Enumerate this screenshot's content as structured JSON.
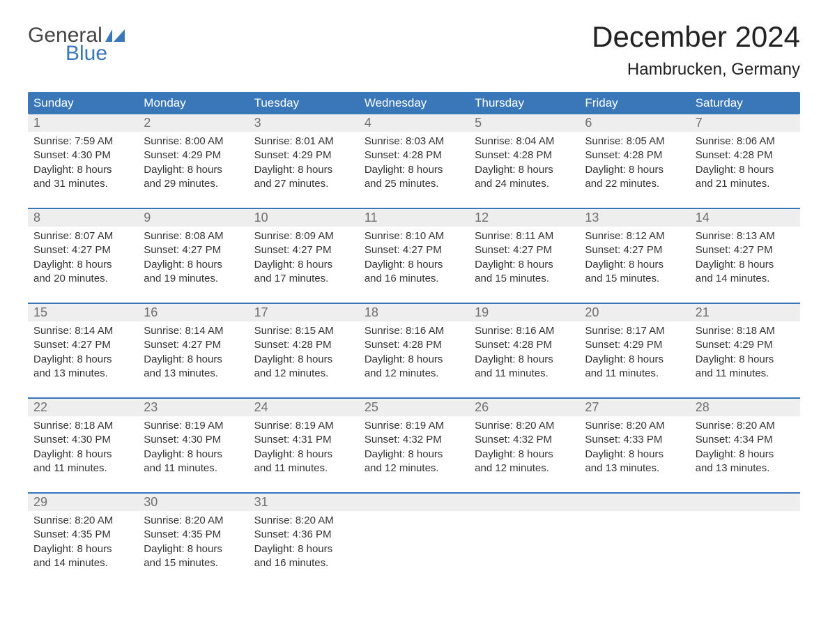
{
  "brand": {
    "word1": "General",
    "word2": "Blue"
  },
  "title": "December 2024",
  "location": "Hambrucken, Germany",
  "colors": {
    "header_bg": "#3a77b8",
    "header_text": "#ffffff",
    "daynum_bg": "#eeeeee",
    "daynum_text": "#707070",
    "body_text": "#333333",
    "week_border": "#3a77b8",
    "brand_gray": "#444444",
    "brand_blue": "#3a77b8",
    "page_bg": "#ffffff"
  },
  "typography": {
    "title_fontsize": 42,
    "location_fontsize": 24,
    "dow_fontsize": 17,
    "daynum_fontsize": 18,
    "body_fontsize": 15
  },
  "dow": [
    "Sunday",
    "Monday",
    "Tuesday",
    "Wednesday",
    "Thursday",
    "Friday",
    "Saturday"
  ],
  "days": [
    {
      "n": "1",
      "sunrise": "Sunrise: 7:59 AM",
      "sunset": "Sunset: 4:30 PM",
      "dl1": "Daylight: 8 hours",
      "dl2": "and 31 minutes."
    },
    {
      "n": "2",
      "sunrise": "Sunrise: 8:00 AM",
      "sunset": "Sunset: 4:29 PM",
      "dl1": "Daylight: 8 hours",
      "dl2": "and 29 minutes."
    },
    {
      "n": "3",
      "sunrise": "Sunrise: 8:01 AM",
      "sunset": "Sunset: 4:29 PM",
      "dl1": "Daylight: 8 hours",
      "dl2": "and 27 minutes."
    },
    {
      "n": "4",
      "sunrise": "Sunrise: 8:03 AM",
      "sunset": "Sunset: 4:28 PM",
      "dl1": "Daylight: 8 hours",
      "dl2": "and 25 minutes."
    },
    {
      "n": "5",
      "sunrise": "Sunrise: 8:04 AM",
      "sunset": "Sunset: 4:28 PM",
      "dl1": "Daylight: 8 hours",
      "dl2": "and 24 minutes."
    },
    {
      "n": "6",
      "sunrise": "Sunrise: 8:05 AM",
      "sunset": "Sunset: 4:28 PM",
      "dl1": "Daylight: 8 hours",
      "dl2": "and 22 minutes."
    },
    {
      "n": "7",
      "sunrise": "Sunrise: 8:06 AM",
      "sunset": "Sunset: 4:28 PM",
      "dl1": "Daylight: 8 hours",
      "dl2": "and 21 minutes."
    },
    {
      "n": "8",
      "sunrise": "Sunrise: 8:07 AM",
      "sunset": "Sunset: 4:27 PM",
      "dl1": "Daylight: 8 hours",
      "dl2": "and 20 minutes."
    },
    {
      "n": "9",
      "sunrise": "Sunrise: 8:08 AM",
      "sunset": "Sunset: 4:27 PM",
      "dl1": "Daylight: 8 hours",
      "dl2": "and 19 minutes."
    },
    {
      "n": "10",
      "sunrise": "Sunrise: 8:09 AM",
      "sunset": "Sunset: 4:27 PM",
      "dl1": "Daylight: 8 hours",
      "dl2": "and 17 minutes."
    },
    {
      "n": "11",
      "sunrise": "Sunrise: 8:10 AM",
      "sunset": "Sunset: 4:27 PM",
      "dl1": "Daylight: 8 hours",
      "dl2": "and 16 minutes."
    },
    {
      "n": "12",
      "sunrise": "Sunrise: 8:11 AM",
      "sunset": "Sunset: 4:27 PM",
      "dl1": "Daylight: 8 hours",
      "dl2": "and 15 minutes."
    },
    {
      "n": "13",
      "sunrise": "Sunrise: 8:12 AM",
      "sunset": "Sunset: 4:27 PM",
      "dl1": "Daylight: 8 hours",
      "dl2": "and 15 minutes."
    },
    {
      "n": "14",
      "sunrise": "Sunrise: 8:13 AM",
      "sunset": "Sunset: 4:27 PM",
      "dl1": "Daylight: 8 hours",
      "dl2": "and 14 minutes."
    },
    {
      "n": "15",
      "sunrise": "Sunrise: 8:14 AM",
      "sunset": "Sunset: 4:27 PM",
      "dl1": "Daylight: 8 hours",
      "dl2": "and 13 minutes."
    },
    {
      "n": "16",
      "sunrise": "Sunrise: 8:14 AM",
      "sunset": "Sunset: 4:27 PM",
      "dl1": "Daylight: 8 hours",
      "dl2": "and 13 minutes."
    },
    {
      "n": "17",
      "sunrise": "Sunrise: 8:15 AM",
      "sunset": "Sunset: 4:28 PM",
      "dl1": "Daylight: 8 hours",
      "dl2": "and 12 minutes."
    },
    {
      "n": "18",
      "sunrise": "Sunrise: 8:16 AM",
      "sunset": "Sunset: 4:28 PM",
      "dl1": "Daylight: 8 hours",
      "dl2": "and 12 minutes."
    },
    {
      "n": "19",
      "sunrise": "Sunrise: 8:16 AM",
      "sunset": "Sunset: 4:28 PM",
      "dl1": "Daylight: 8 hours",
      "dl2": "and 11 minutes."
    },
    {
      "n": "20",
      "sunrise": "Sunrise: 8:17 AM",
      "sunset": "Sunset: 4:29 PM",
      "dl1": "Daylight: 8 hours",
      "dl2": "and 11 minutes."
    },
    {
      "n": "21",
      "sunrise": "Sunrise: 8:18 AM",
      "sunset": "Sunset: 4:29 PM",
      "dl1": "Daylight: 8 hours",
      "dl2": "and 11 minutes."
    },
    {
      "n": "22",
      "sunrise": "Sunrise: 8:18 AM",
      "sunset": "Sunset: 4:30 PM",
      "dl1": "Daylight: 8 hours",
      "dl2": "and 11 minutes."
    },
    {
      "n": "23",
      "sunrise": "Sunrise: 8:19 AM",
      "sunset": "Sunset: 4:30 PM",
      "dl1": "Daylight: 8 hours",
      "dl2": "and 11 minutes."
    },
    {
      "n": "24",
      "sunrise": "Sunrise: 8:19 AM",
      "sunset": "Sunset: 4:31 PM",
      "dl1": "Daylight: 8 hours",
      "dl2": "and 11 minutes."
    },
    {
      "n": "25",
      "sunrise": "Sunrise: 8:19 AM",
      "sunset": "Sunset: 4:32 PM",
      "dl1": "Daylight: 8 hours",
      "dl2": "and 12 minutes."
    },
    {
      "n": "26",
      "sunrise": "Sunrise: 8:20 AM",
      "sunset": "Sunset: 4:32 PM",
      "dl1": "Daylight: 8 hours",
      "dl2": "and 12 minutes."
    },
    {
      "n": "27",
      "sunrise": "Sunrise: 8:20 AM",
      "sunset": "Sunset: 4:33 PM",
      "dl1": "Daylight: 8 hours",
      "dl2": "and 13 minutes."
    },
    {
      "n": "28",
      "sunrise": "Sunrise: 8:20 AM",
      "sunset": "Sunset: 4:34 PM",
      "dl1": "Daylight: 8 hours",
      "dl2": "and 13 minutes."
    },
    {
      "n": "29",
      "sunrise": "Sunrise: 8:20 AM",
      "sunset": "Sunset: 4:35 PM",
      "dl1": "Daylight: 8 hours",
      "dl2": "and 14 minutes."
    },
    {
      "n": "30",
      "sunrise": "Sunrise: 8:20 AM",
      "sunset": "Sunset: 4:35 PM",
      "dl1": "Daylight: 8 hours",
      "dl2": "and 15 minutes."
    },
    {
      "n": "31",
      "sunrise": "Sunrise: 8:20 AM",
      "sunset": "Sunset: 4:36 PM",
      "dl1": "Daylight: 8 hours",
      "dl2": "and 16 minutes."
    }
  ]
}
